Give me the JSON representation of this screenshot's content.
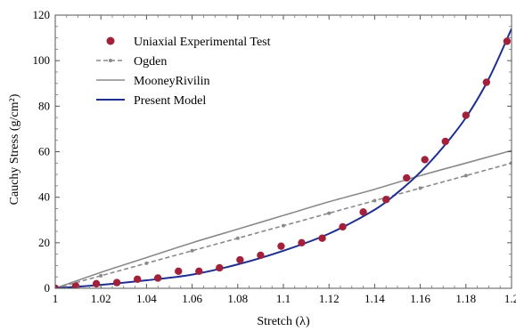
{
  "chart_data": {
    "type": "line",
    "xlabel": "Stretch (λ)",
    "ylabel": "Cauchy Stress (g/cm²)",
    "xlim": [
      1.0,
      1.2
    ],
    "ylim": [
      0,
      120
    ],
    "x_ticks": [
      "1",
      "1.02",
      "1.04",
      "1.06",
      "1.08",
      "1.1",
      "1.12",
      "1.14",
      "1.16",
      "1.18",
      "1.2"
    ],
    "x_tick_values": [
      1.0,
      1.02,
      1.04,
      1.06,
      1.08,
      1.1,
      1.12,
      1.14,
      1.16,
      1.18,
      1.2
    ],
    "y_ticks": [
      "0",
      "20",
      "40",
      "60",
      "80",
      "100",
      "120"
    ],
    "y_tick_values": [
      0,
      20,
      40,
      60,
      80,
      100,
      120
    ],
    "grid": false,
    "legend_position": "top-left",
    "series": [
      {
        "name": "Uniaxial Experimental Test",
        "kind": "scatter",
        "color": "#a3203a",
        "points": [
          [
            1.0,
            0.0
          ],
          [
            1.009,
            1.0
          ],
          [
            1.018,
            2.0
          ],
          [
            1.027,
            2.5
          ],
          [
            1.036,
            4.0
          ],
          [
            1.045,
            4.5
          ],
          [
            1.054,
            7.5
          ],
          [
            1.063,
            7.5
          ],
          [
            1.072,
            9.0
          ],
          [
            1.081,
            12.5
          ],
          [
            1.09,
            14.5
          ],
          [
            1.099,
            18.5
          ],
          [
            1.108,
            20.0
          ],
          [
            1.117,
            22.0
          ],
          [
            1.126,
            27.0
          ],
          [
            1.135,
            33.5
          ],
          [
            1.145,
            39.0
          ],
          [
            1.154,
            48.5
          ],
          [
            1.162,
            56.5
          ],
          [
            1.171,
            64.5
          ],
          [
            1.18,
            76.0
          ],
          [
            1.189,
            90.5
          ],
          [
            1.198,
            108.5
          ]
        ]
      },
      {
        "name": "Ogden",
        "kind": "line",
        "color": "#8a8a8a",
        "dash": "5,3",
        "marker": "dot",
        "points": [
          [
            1.0,
            0.0
          ],
          [
            1.02,
            5.5
          ],
          [
            1.04,
            11.0
          ],
          [
            1.06,
            16.5
          ],
          [
            1.08,
            22.0
          ],
          [
            1.1,
            27.5
          ],
          [
            1.12,
            33.0
          ],
          [
            1.14,
            38.5
          ],
          [
            1.16,
            44.0
          ],
          [
            1.18,
            49.5
          ],
          [
            1.2,
            55.0
          ]
        ]
      },
      {
        "name": "MooneyRivilin",
        "kind": "line",
        "color": "#8a8a8a",
        "points": [
          [
            1.0,
            0.0
          ],
          [
            1.02,
            7.0
          ],
          [
            1.04,
            13.5
          ],
          [
            1.06,
            20.0
          ],
          [
            1.08,
            26.0
          ],
          [
            1.1,
            32.0
          ],
          [
            1.12,
            38.0
          ],
          [
            1.14,
            43.5
          ],
          [
            1.16,
            49.5
          ],
          [
            1.18,
            55.0
          ],
          [
            1.2,
            60.5
          ]
        ]
      },
      {
        "name": "Present Model",
        "kind": "line",
        "color": "#1f2f8f",
        "points": [
          [
            1.0,
            0.0
          ],
          [
            1.02,
            1.5
          ],
          [
            1.04,
            3.5
          ],
          [
            1.06,
            6.0
          ],
          [
            1.08,
            10.5
          ],
          [
            1.1,
            16.5
          ],
          [
            1.12,
            24.0
          ],
          [
            1.14,
            34.5
          ],
          [
            1.15,
            42.0
          ],
          [
            1.16,
            51.0
          ],
          [
            1.17,
            62.0
          ],
          [
            1.18,
            75.0
          ],
          [
            1.19,
            92.0
          ],
          [
            1.2,
            114.0
          ]
        ]
      }
    ]
  }
}
